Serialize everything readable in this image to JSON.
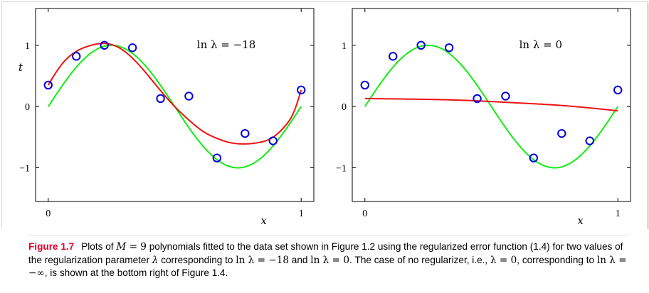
{
  "colors": {
    "fit": "#ee1111",
    "truth": "#11ee11",
    "points": "#0000dd",
    "axes": "#000000",
    "caption_label": "#e8002a"
  },
  "chart_data": [
    {
      "type": "line",
      "panel": "left",
      "annotation": {
        "var": "ln λ",
        "op": " = ",
        "val": "−18"
      },
      "xlabel": "x",
      "ylabel": "t",
      "xlim": [
        -0.05,
        1.05
      ],
      "ylim": [
        -1.55,
        1.6
      ],
      "xticks": [
        {
          "v": 0,
          "label": "0"
        },
        {
          "v": 1,
          "label": "1"
        }
      ],
      "yticks": [
        {
          "v": -1,
          "label": "−1"
        },
        {
          "v": 0,
          "label": "0"
        },
        {
          "v": 1,
          "label": "1"
        }
      ],
      "points": [
        [
          0.0,
          0.35
        ],
        [
          0.111,
          0.82
        ],
        [
          0.222,
          1.0
        ],
        [
          0.333,
          0.96
        ],
        [
          0.444,
          0.13
        ],
        [
          0.556,
          0.17
        ],
        [
          0.667,
          -0.84
        ],
        [
          0.778,
          -0.44
        ],
        [
          0.889,
          -0.56
        ],
        [
          1.0,
          0.27
        ]
      ],
      "fit": [
        [
          0.0,
          0.35
        ],
        [
          0.05,
          0.67
        ],
        [
          0.111,
          0.9
        ],
        [
          0.17,
          1.0
        ],
        [
          0.222,
          1.03
        ],
        [
          0.28,
          0.96
        ],
        [
          0.333,
          0.79
        ],
        [
          0.39,
          0.53
        ],
        [
          0.444,
          0.26
        ],
        [
          0.5,
          0.0
        ],
        [
          0.556,
          -0.22
        ],
        [
          0.61,
          -0.4
        ],
        [
          0.667,
          -0.52
        ],
        [
          0.72,
          -0.59
        ],
        [
          0.778,
          -0.61
        ],
        [
          0.83,
          -0.59
        ],
        [
          0.889,
          -0.5
        ],
        [
          0.94,
          -0.3
        ],
        [
          0.97,
          -0.1
        ],
        [
          1.0,
          0.27
        ]
      ]
    },
    {
      "type": "line",
      "panel": "right",
      "annotation": {
        "var": "ln λ",
        "op": " = ",
        "val": "0"
      },
      "xlabel": "x",
      "ylabel": "",
      "xlim": [
        -0.05,
        1.05
      ],
      "ylim": [
        -1.55,
        1.6
      ],
      "xticks": [
        {
          "v": 0,
          "label": "0"
        },
        {
          "v": 1,
          "label": "1"
        }
      ],
      "yticks": [
        {
          "v": -1,
          "label": "−1"
        },
        {
          "v": 0,
          "label": "0"
        },
        {
          "v": 1,
          "label": "1"
        }
      ],
      "points": [
        [
          0.0,
          0.35
        ],
        [
          0.111,
          0.82
        ],
        [
          0.222,
          1.0
        ],
        [
          0.333,
          0.96
        ],
        [
          0.444,
          0.13
        ],
        [
          0.556,
          0.17
        ],
        [
          0.667,
          -0.84
        ],
        [
          0.778,
          -0.44
        ],
        [
          0.889,
          -0.56
        ],
        [
          1.0,
          0.27
        ]
      ],
      "fit": [
        [
          0.0,
          0.13
        ],
        [
          0.2,
          0.12
        ],
        [
          0.4,
          0.1
        ],
        [
          0.6,
          0.06
        ],
        [
          0.8,
          0.01
        ],
        [
          1.0,
          -0.07
        ]
      ]
    }
  ],
  "caption": {
    "label": "Figure 1.7",
    "line1_a": "Plots of ",
    "line1_m": "M",
    "line1_eq": " = 9",
    "line1_b": " polynomials fitted to the data set shown in Figure 1.2 using the regularized error",
    "line2_a": "function (1.4) for two values of the regularization parameter ",
    "line2_lambda": "λ",
    "line2_b": " corresponding to ",
    "line2_ln1": "ln λ = −18",
    "line2_c": " and ",
    "line2_ln2": "ln λ = 0",
    "line2_d": ". The",
    "line3_a": "case of no regularizer, i.e., ",
    "line3_l0": "λ = 0",
    "line3_b": ", corresponding to ",
    "line3_linf": "ln λ = −∞",
    "line3_c": ", is shown at the bottom right of Figure 1.4."
  }
}
